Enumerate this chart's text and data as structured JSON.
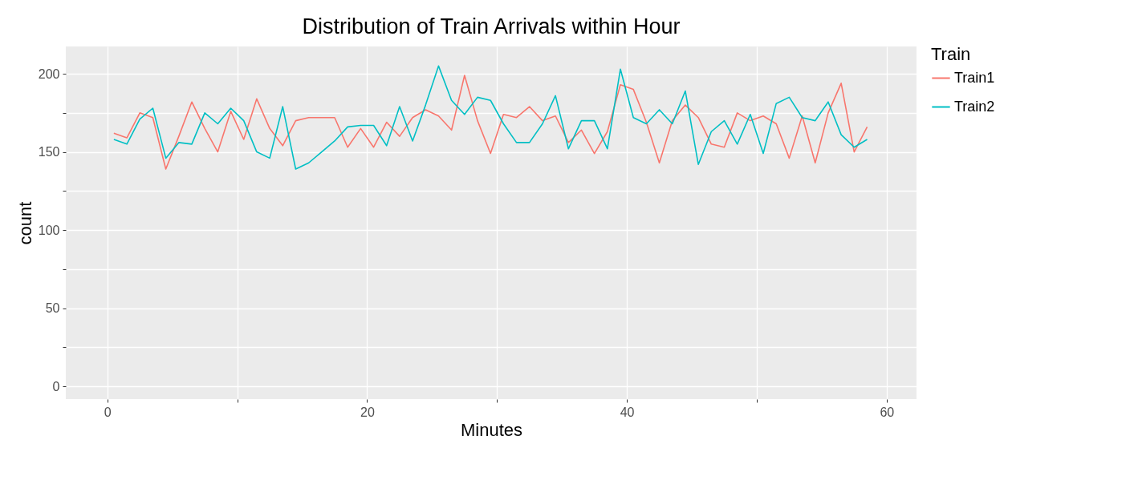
{
  "chart_data": {
    "type": "line",
    "title": "Distribution of Train Arrivals within Hour",
    "xlabel": "Minutes",
    "ylabel": "count",
    "legend_title": "Train",
    "x": [
      0.5,
      1.5,
      2.5,
      3.5,
      4.5,
      5.5,
      6.5,
      7.5,
      8.5,
      9.5,
      10.5,
      11.5,
      12.5,
      13.5,
      14.5,
      15.5,
      16.5,
      17.5,
      18.5,
      19.5,
      20.5,
      21.5,
      22.5,
      23.5,
      24.5,
      25.5,
      26.5,
      27.5,
      28.5,
      29.5,
      30.5,
      31.5,
      32.5,
      33.5,
      34.5,
      35.5,
      36.5,
      37.5,
      38.5,
      39.5,
      40.5,
      41.5,
      42.5,
      43.5,
      44.5,
      45.5,
      46.5,
      47.5,
      48.5,
      49.5,
      50.5,
      51.5,
      52.5,
      53.5,
      54.5,
      55.5,
      56.5,
      57.5,
      58.5
    ],
    "series": [
      {
        "name": "Train1",
        "color": "#f8766d",
        "values": [
          162,
          159,
          175,
          172,
          139,
          160,
          182,
          165,
          150,
          176,
          158,
          184,
          165,
          154,
          170,
          172,
          172,
          172,
          153,
          165,
          153,
          169,
          160,
          172,
          177,
          173,
          164,
          199,
          170,
          149,
          174,
          172,
          179,
          170,
          173,
          156,
          164,
          149,
          163,
          193,
          190,
          169,
          143,
          170,
          180,
          172,
          155,
          153,
          175,
          170,
          173,
          168,
          146,
          173,
          143,
          175,
          194,
          150,
          166
        ]
      },
      {
        "name": "Train2",
        "color": "#00bfc4",
        "values": [
          158,
          155,
          171,
          178,
          146,
          156,
          155,
          175,
          168,
          178,
          170,
          150,
          146,
          179,
          139,
          143,
          150,
          157,
          166,
          167,
          167,
          154,
          179,
          157,
          180,
          205,
          183,
          174,
          185,
          183,
          168,
          156,
          156,
          168,
          186,
          152,
          170,
          170,
          152,
          203,
          172,
          168,
          177,
          168,
          189,
          142,
          163,
          170,
          155,
          174,
          149,
          181,
          185,
          172,
          170,
          182,
          161,
          153,
          158
        ]
      }
    ],
    "xlim": [
      -3.2,
      62.3
    ],
    "ylim": [
      -8.2,
      217.5
    ],
    "xticks": [
      0,
      {
        "value": 10,
        "label": null
      },
      20,
      {
        "value": 30,
        "label": null
      },
      40,
      {
        "value": 50,
        "label": null
      },
      60
    ],
    "yticks": [
      0,
      {
        "value": 25,
        "label": null
      },
      50,
      {
        "value": 75,
        "label": null
      },
      100,
      {
        "value": 125,
        "label": null
      },
      150,
      {
        "value": 175,
        "label": null
      },
      200
    ],
    "grid": true,
    "legend": "right"
  }
}
